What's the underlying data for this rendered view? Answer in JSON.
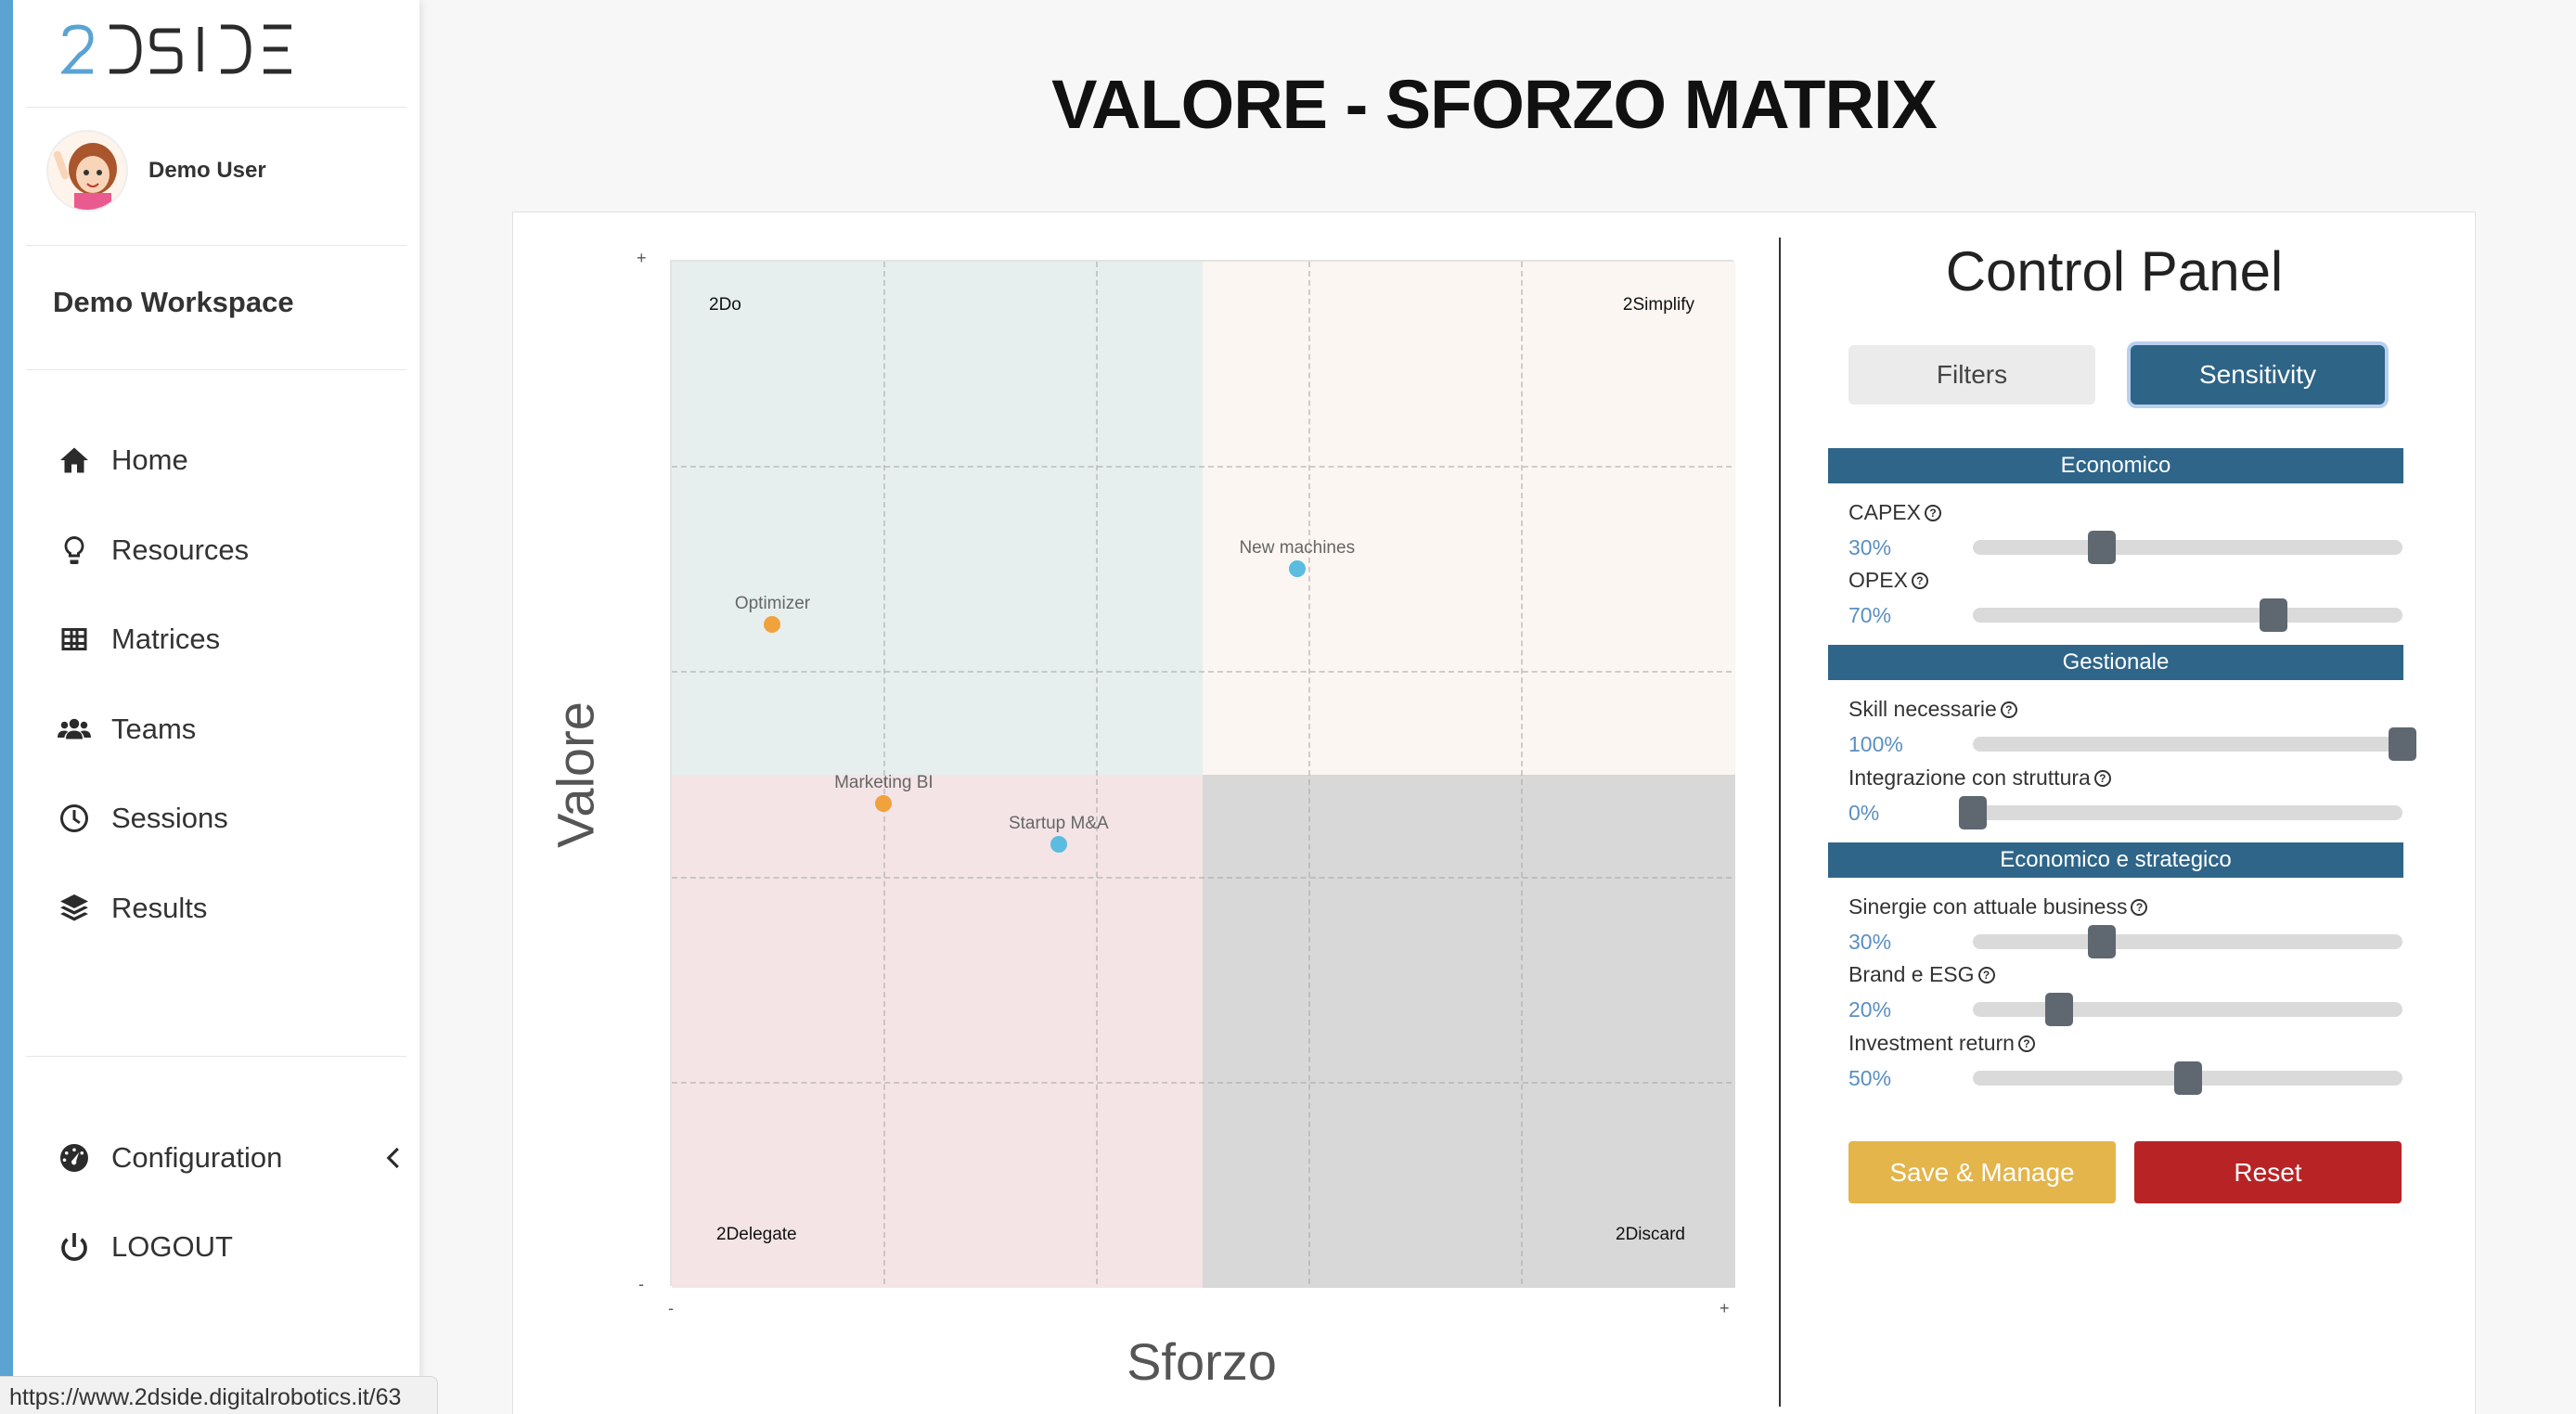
{
  "app": {
    "logo_text": "2DSIDE",
    "user_name": "Demo User",
    "workspace": "Demo Workspace",
    "status_url": "https://www.2dside.digitalrobotics.it/63"
  },
  "sidebar": {
    "items": [
      {
        "label": "Home",
        "icon": "home-icon"
      },
      {
        "label": "Resources",
        "icon": "lightbulb-icon"
      },
      {
        "label": "Matrices",
        "icon": "table-icon"
      },
      {
        "label": "Teams",
        "icon": "users-icon"
      },
      {
        "label": "Sessions",
        "icon": "clock-icon"
      },
      {
        "label": "Results",
        "icon": "layers-icon"
      }
    ],
    "configuration": "Configuration",
    "logout": "LOGOUT"
  },
  "page": {
    "title": "VALORE - SFORZO MATRIX"
  },
  "chart_data": {
    "type": "scatter",
    "xlabel": "Sforzo",
    "ylabel": "Valore",
    "x_ticks": {
      "min": "-",
      "max": "+"
    },
    "y_ticks": {
      "min": "-",
      "max": "+"
    },
    "xlim": [
      0,
      100
    ],
    "ylim": [
      0,
      100
    ],
    "quadrants": {
      "top_left": "2Do",
      "top_right": "2Simplify",
      "bottom_left": "2Delegate",
      "bottom_right": "2Discard"
    },
    "quadrant_colors": {
      "top_left": "#e6efee",
      "top_right": "#fbf6f1",
      "bottom_left": "#f4e4e6",
      "bottom_right": "#d8d8d8"
    },
    "points": [
      {
        "label": "New machines",
        "x": 59,
        "y": 70,
        "color": "#5bbce0"
      },
      {
        "label": "Optimizer",
        "x": 9.5,
        "y": 64.5,
        "color": "#f0a23c"
      },
      {
        "label": "Marketing BI",
        "x": 20,
        "y": 47,
        "color": "#f0a23c"
      },
      {
        "label": "Startup M&A",
        "x": 36.5,
        "y": 43,
        "color": "#5bbce0"
      }
    ]
  },
  "control_panel": {
    "title": "Control Panel",
    "tabs": {
      "filters": "Filters",
      "sensitivity": "Sensitivity"
    },
    "sections": [
      {
        "title": "Economico",
        "sliders": [
          {
            "label": "CAPEX",
            "value": "30%",
            "level": 30
          },
          {
            "label": "OPEX",
            "value": "70%",
            "level": 70
          }
        ]
      },
      {
        "title": "Gestionale",
        "sliders": [
          {
            "label": "Skill necessarie",
            "value": "100%",
            "level": 100
          },
          {
            "label": "Integrazione con struttura",
            "value": "0%",
            "level": 0
          }
        ]
      },
      {
        "title": "Economico e strategico",
        "sliders": [
          {
            "label": "Sinergie con attuale business",
            "value": "30%",
            "level": 30
          },
          {
            "label": "Brand e ESG",
            "value": "20%",
            "level": 20
          },
          {
            "label": "Investment return",
            "value": "50%",
            "level": 50
          }
        ]
      }
    ],
    "buttons": {
      "save": "Save & Manage",
      "reset": "Reset"
    }
  },
  "colors": {
    "accent": "#5aa3d3",
    "section_header": "#2f6589",
    "save": "#e3b54a",
    "reset": "#b82325"
  }
}
